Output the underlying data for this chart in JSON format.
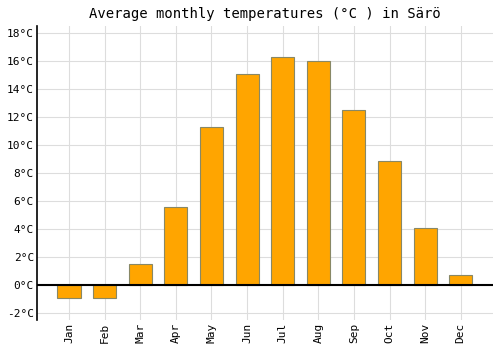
{
  "title": "Average monthly temperatures (°C ) in Särö",
  "months": [
    "Jan",
    "Feb",
    "Mar",
    "Apr",
    "May",
    "Jun",
    "Jul",
    "Aug",
    "Sep",
    "Oct",
    "Nov",
    "Dec"
  ],
  "values": [
    -0.9,
    -0.9,
    1.5,
    5.6,
    11.3,
    15.1,
    16.3,
    16.0,
    12.5,
    8.9,
    4.1,
    0.7
  ],
  "bar_color": "#FFA500",
  "bar_edge_color": "#888866",
  "ylim": [
    -2.5,
    18.5
  ],
  "yticks": [
    -2,
    0,
    2,
    4,
    6,
    8,
    10,
    12,
    14,
    16,
    18
  ],
  "background_color": "#ffffff",
  "grid_color": "#dddddd",
  "title_fontsize": 10,
  "tick_fontsize": 8,
  "zero_line_color": "#000000"
}
